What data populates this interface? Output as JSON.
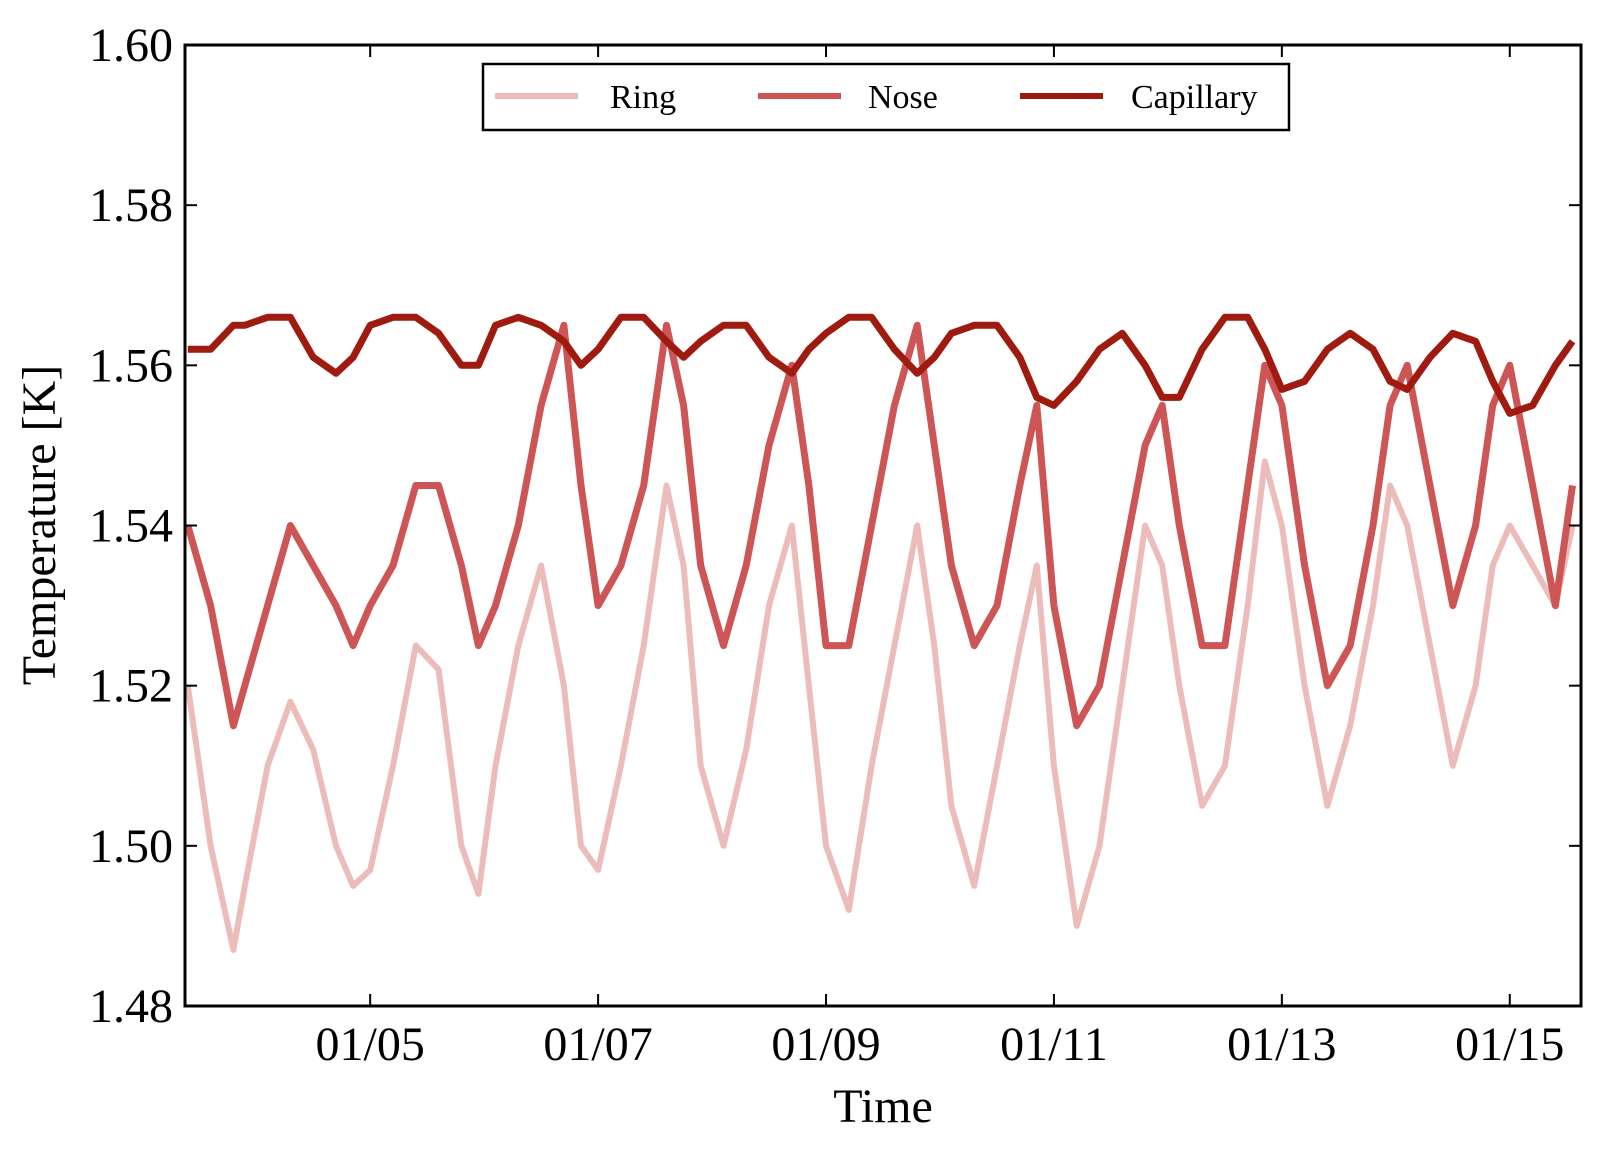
{
  "chart_data": {
    "type": "line",
    "title": "",
    "xlabel": "Time",
    "ylabel": "Temperature [K]",
    "ylim": [
      1.48,
      1.6
    ],
    "xlim": [
      "01/03 09:00",
      "01/15 15:00"
    ],
    "yticks": [
      "1.48",
      "1.50",
      "1.52",
      "1.54",
      "1.56",
      "1.58",
      "1.60"
    ],
    "xticks": [
      "01/05",
      "01/07",
      "01/09",
      "01/11",
      "01/13",
      "01/15"
    ],
    "grid": false,
    "legend_position": "top-center",
    "x_units": "day of January",
    "series": [
      {
        "name": "Ring",
        "color": "#ecbcba",
        "x": [
          3.4,
          3.6,
          3.8,
          3.9,
          4.1,
          4.3,
          4.5,
          4.7,
          4.85,
          5.0,
          5.2,
          5.4,
          5.6,
          5.8,
          5.95,
          6.1,
          6.3,
          6.5,
          6.7,
          6.85,
          7.0,
          7.2,
          7.4,
          7.6,
          7.75,
          7.9,
          8.1,
          8.3,
          8.5,
          8.7,
          8.85,
          9.0,
          9.2,
          9.4,
          9.6,
          9.8,
          9.95,
          10.1,
          10.3,
          10.5,
          10.7,
          10.85,
          11.0,
          11.2,
          11.4,
          11.6,
          11.8,
          11.95,
          12.1,
          12.3,
          12.5,
          12.7,
          12.85,
          13.0,
          13.2,
          13.4,
          13.6,
          13.8,
          13.95,
          14.1,
          14.3,
          14.5,
          14.7,
          14.85,
          15.0,
          15.2,
          15.4,
          15.55
        ],
        "y": [
          1.52,
          1.5,
          1.487,
          1.495,
          1.51,
          1.518,
          1.512,
          1.5,
          1.495,
          1.497,
          1.51,
          1.525,
          1.522,
          1.5,
          1.494,
          1.51,
          1.525,
          1.535,
          1.52,
          1.5,
          1.497,
          1.51,
          1.525,
          1.545,
          1.535,
          1.51,
          1.5,
          1.512,
          1.53,
          1.54,
          1.52,
          1.5,
          1.492,
          1.51,
          1.525,
          1.54,
          1.525,
          1.505,
          1.495,
          1.51,
          1.525,
          1.535,
          1.51,
          1.49,
          1.5,
          1.52,
          1.54,
          1.535,
          1.52,
          1.505,
          1.51,
          1.53,
          1.548,
          1.54,
          1.52,
          1.505,
          1.515,
          1.53,
          1.545,
          1.54,
          1.525,
          1.51,
          1.52,
          1.535,
          1.54,
          1.535,
          1.53,
          1.54
        ]
      },
      {
        "name": "Nose",
        "color": "#ce5555",
        "x": [
          3.4,
          3.6,
          3.8,
          3.9,
          4.1,
          4.3,
          4.5,
          4.7,
          4.85,
          5.0,
          5.2,
          5.4,
          5.6,
          5.8,
          5.95,
          6.1,
          6.3,
          6.5,
          6.7,
          6.85,
          7.0,
          7.2,
          7.4,
          7.6,
          7.75,
          7.9,
          8.1,
          8.3,
          8.5,
          8.7,
          8.85,
          9.0,
          9.2,
          9.4,
          9.6,
          9.8,
          9.95,
          10.1,
          10.3,
          10.5,
          10.7,
          10.85,
          11.0,
          11.2,
          11.4,
          11.6,
          11.8,
          11.95,
          12.1,
          12.3,
          12.5,
          12.7,
          12.85,
          13.0,
          13.2,
          13.4,
          13.6,
          13.8,
          13.95,
          14.1,
          14.3,
          14.5,
          14.7,
          14.85,
          15.0,
          15.2,
          15.4,
          15.55
        ],
        "y": [
          1.54,
          1.53,
          1.515,
          1.52,
          1.53,
          1.54,
          1.535,
          1.53,
          1.525,
          1.53,
          1.535,
          1.545,
          1.545,
          1.535,
          1.525,
          1.53,
          1.54,
          1.555,
          1.565,
          1.545,
          1.53,
          1.535,
          1.545,
          1.565,
          1.555,
          1.535,
          1.525,
          1.535,
          1.55,
          1.56,
          1.545,
          1.525,
          1.525,
          1.54,
          1.555,
          1.565,
          1.55,
          1.535,
          1.525,
          1.53,
          1.545,
          1.555,
          1.53,
          1.515,
          1.52,
          1.535,
          1.55,
          1.555,
          1.54,
          1.525,
          1.525,
          1.545,
          1.56,
          1.555,
          1.535,
          1.52,
          1.525,
          1.54,
          1.555,
          1.56,
          1.545,
          1.53,
          1.54,
          1.555,
          1.56,
          1.545,
          1.53,
          1.545
        ]
      },
      {
        "name": "Capillary",
        "color": "#a01b0f",
        "x": [
          3.4,
          3.6,
          3.8,
          3.9,
          4.1,
          4.3,
          4.5,
          4.7,
          4.85,
          5.0,
          5.2,
          5.4,
          5.6,
          5.8,
          5.95,
          6.1,
          6.3,
          6.5,
          6.7,
          6.85,
          7.0,
          7.2,
          7.4,
          7.6,
          7.75,
          7.9,
          8.1,
          8.3,
          8.5,
          8.7,
          8.85,
          9.0,
          9.2,
          9.4,
          9.6,
          9.8,
          9.95,
          10.1,
          10.3,
          10.5,
          10.7,
          10.85,
          11.0,
          11.2,
          11.4,
          11.6,
          11.8,
          11.95,
          12.1,
          12.3,
          12.5,
          12.7,
          12.85,
          13.0,
          13.2,
          13.4,
          13.6,
          13.8,
          13.95,
          14.1,
          14.3,
          14.5,
          14.7,
          14.85,
          15.0,
          15.2,
          15.4,
          15.55
        ],
        "y": [
          1.562,
          1.562,
          1.565,
          1.565,
          1.566,
          1.566,
          1.561,
          1.559,
          1.561,
          1.565,
          1.566,
          1.566,
          1.564,
          1.56,
          1.56,
          1.565,
          1.566,
          1.565,
          1.563,
          1.56,
          1.562,
          1.566,
          1.566,
          1.563,
          1.561,
          1.563,
          1.565,
          1.565,
          1.561,
          1.559,
          1.562,
          1.564,
          1.566,
          1.566,
          1.562,
          1.559,
          1.561,
          1.564,
          1.565,
          1.565,
          1.561,
          1.556,
          1.555,
          1.558,
          1.562,
          1.564,
          1.56,
          1.556,
          1.556,
          1.562,
          1.566,
          1.566,
          1.562,
          1.557,
          1.558,
          1.562,
          1.564,
          1.562,
          1.558,
          1.557,
          1.561,
          1.564,
          1.563,
          1.558,
          1.554,
          1.555,
          1.56,
          1.563
        ]
      }
    ]
  }
}
